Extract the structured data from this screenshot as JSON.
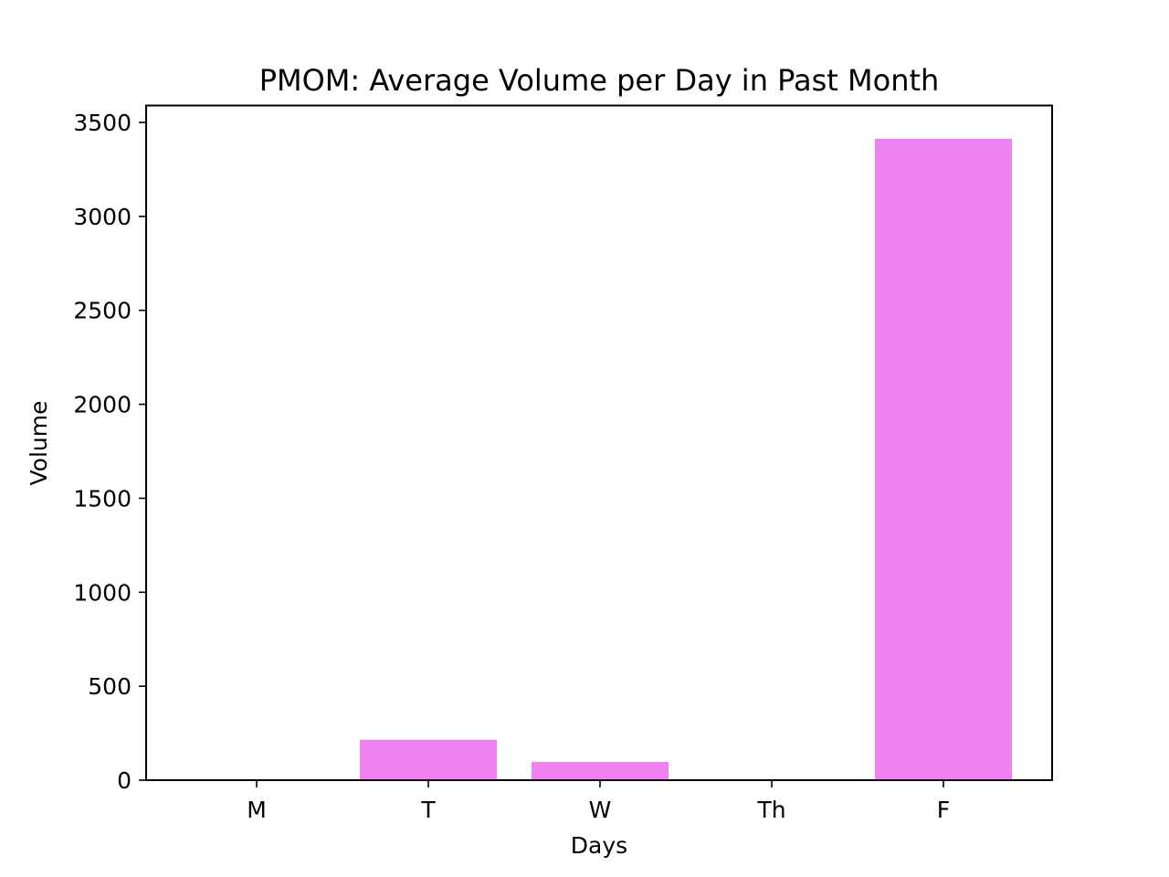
{
  "chart_data": {
    "type": "bar",
    "title": "PMOM: Average Volume per Day in Past Month",
    "xlabel": "Days",
    "ylabel": "Volume",
    "categories": [
      "M",
      "T",
      "W",
      "Th",
      "F"
    ],
    "values": [
      0,
      215,
      97,
      0,
      3413
    ],
    "ylim": [
      0,
      3590
    ],
    "yticks": [
      0,
      500,
      1000,
      1500,
      2000,
      2500,
      3000,
      3500
    ],
    "bar_color": "#ee82ee",
    "grid": false,
    "legend": "none"
  }
}
